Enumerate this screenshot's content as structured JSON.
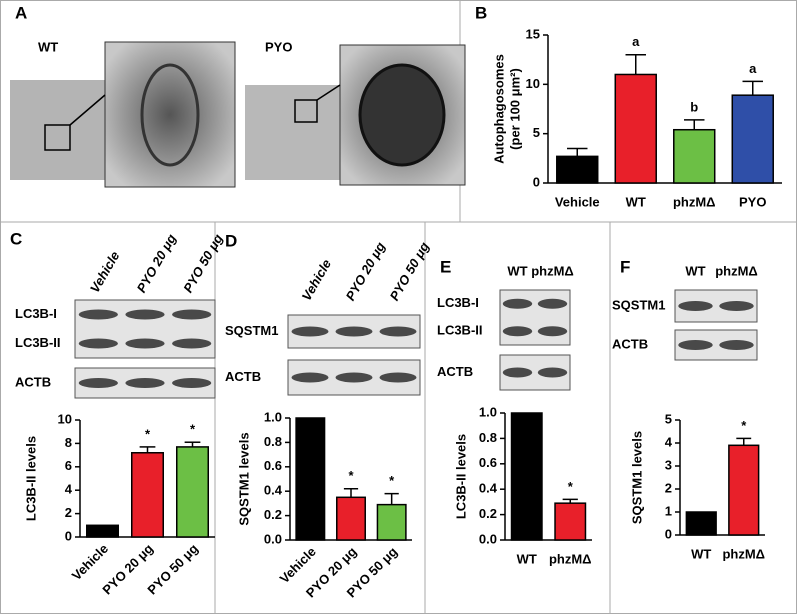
{
  "figure": {
    "panel_labels": [
      "A",
      "B",
      "C",
      "D",
      "E",
      "F"
    ],
    "micrograph_labels": [
      "WT",
      "PYO"
    ],
    "blots": [
      {
        "lanes": [
          "Vehicle",
          "PYO 20 μg",
          "PYO 50 μg"
        ],
        "rows": [
          [
            "LC3B-I",
            "LC3B-II"
          ],
          [
            "ACTB"
          ]
        ]
      },
      {
        "lanes": [
          "Vehicle",
          "PYO 20 μg",
          "PYO 50 μg"
        ],
        "rows": [
          [
            "SQSTM1"
          ],
          [
            "ACTB"
          ]
        ]
      },
      {
        "lanes": [
          "WT",
          "phzMΔ"
        ],
        "rows": [
          [
            "LC3B-I",
            "LC3B-II"
          ],
          [
            "ACTB"
          ]
        ]
      },
      {
        "lanes": [
          "WT",
          "phzMΔ"
        ],
        "rows": [
          [
            "SQSTM1"
          ],
          [
            "ACTB"
          ]
        ]
      }
    ]
  },
  "chart_data": [
    {
      "type": "bar",
      "ylabel": [
        "Autophagosomes",
        "(per 100 μm²)"
      ],
      "categories": [
        "Vehicle",
        "WT",
        "phzMΔ",
        "PYO"
      ],
      "values": [
        2.7,
        11,
        5.4,
        8.9
      ],
      "errors": [
        0.8,
        2,
        1,
        1.4
      ],
      "annotations": [
        null,
        "a",
        "b",
        "a"
      ],
      "colors": [
        "#000000",
        "#e8202a",
        "#6cbf45",
        "#2f4fa8"
      ],
      "ylim": [
        0,
        15
      ],
      "yticks": [
        0,
        5,
        10,
        15
      ]
    },
    {
      "type": "bar",
      "ylabel": "LC3B-II levels",
      "categories": [
        "Vehicle",
        "PYO 20 μg",
        "PYO 50 μg"
      ],
      "values": [
        1,
        7.2,
        7.7
      ],
      "errors": [
        null,
        0.5,
        0.4
      ],
      "annotations": [
        null,
        "*",
        "*"
      ],
      "colors": [
        "#000000",
        "#e8202a",
        "#6cbf45"
      ],
      "ylim": [
        0,
        10
      ],
      "yticks": [
        0,
        2,
        4,
        6,
        8,
        10
      ]
    },
    {
      "type": "bar",
      "ylabel": "SQSTM1 levels",
      "categories": [
        "Vehicle",
        "PYO 20 μg",
        "PYO 50 μg"
      ],
      "values": [
        1,
        0.35,
        0.29
      ],
      "errors": [
        null,
        0.07,
        0.09
      ],
      "annotations": [
        null,
        "*",
        "*"
      ],
      "colors": [
        "#000000",
        "#e8202a",
        "#6cbf45"
      ],
      "ylim": [
        0,
        1
      ],
      "yticks": [
        {
          "value": 0,
          "label": "0.0"
        },
        0.2,
        0.4,
        0.6,
        0.8,
        {
          "value": 1,
          "label": "1.0"
        }
      ]
    },
    {
      "type": "bar",
      "ylabel": "LC3B-II levels",
      "categories": [
        "WT",
        "phzMΔ"
      ],
      "values": [
        1,
        0.29
      ],
      "errors": [
        null,
        0.03
      ],
      "annotations": [
        null,
        "*"
      ],
      "colors": [
        "#000000",
        "#e8202a"
      ],
      "ylim": [
        0,
        1
      ],
      "yticks": [
        {
          "value": 0,
          "label": "0.0"
        },
        0.2,
        0.4,
        0.6,
        0.8,
        {
          "value": 1,
          "label": "1.0"
        }
      ]
    },
    {
      "type": "bar",
      "ylabel": "SQSTM1 levels",
      "categories": [
        "WT",
        "phzMΔ"
      ],
      "values": [
        1,
        3.9
      ],
      "errors": [
        null,
        0.3
      ],
      "annotations": [
        null,
        "*"
      ],
      "colors": [
        "#000000",
        "#e8202a"
      ],
      "ylim": [
        0,
        5
      ],
      "yticks": [
        0,
        1,
        2,
        3,
        4,
        5
      ]
    }
  ]
}
